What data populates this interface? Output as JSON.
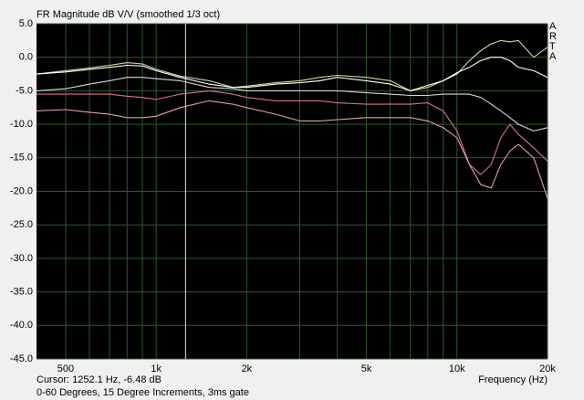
{
  "chart_data": {
    "type": "line",
    "title": "FR Magnitude dB V/V (smoothed 1/3 oct)",
    "x_label": "Frequency (Hz)",
    "brand": "ARTA",
    "cursor": {
      "label": "Cursor: 1252.1 Hz, -6.48 dB",
      "x": 1252.1,
      "color": "#f2f2a8"
    },
    "note": "0-60 Degrees, 15 Degree Increments, 3ms gate",
    "log_x": true,
    "grid": true,
    "grid_color": "#2c5a2c",
    "xlim": [
      400,
      20000
    ],
    "xticks": [
      {
        "value": 500,
        "label": "500"
      },
      {
        "value": 1000,
        "label": "1k"
      },
      {
        "value": 2000,
        "label": "2k"
      },
      {
        "value": 5000,
        "label": "5k"
      },
      {
        "value": 10000,
        "label": "10k"
      },
      {
        "value": 20000,
        "label": "20k"
      }
    ],
    "x_minor_ticks": [
      600,
      700,
      800,
      900,
      3000,
      4000,
      6000,
      7000,
      8000,
      9000
    ],
    "ylim": [
      -45,
      5
    ],
    "yticks": [
      {
        "value": 5,
        "label": "5.0"
      },
      {
        "value": 0,
        "label": "0.0"
      },
      {
        "value": -5,
        "label": "-5.0"
      },
      {
        "value": -10,
        "label": "-10.0"
      },
      {
        "value": -15,
        "label": "-15.0"
      },
      {
        "value": -20,
        "label": "-20.0"
      },
      {
        "value": -25,
        "label": "-25.0"
      },
      {
        "value": -30,
        "label": "-30.0"
      },
      {
        "value": -35,
        "label": "-35.0"
      },
      {
        "value": -40,
        "label": "-40.0"
      },
      {
        "value": -45,
        "label": "-45.0"
      }
    ],
    "x": [
      400,
      500,
      600,
      700,
      800,
      900,
      1000,
      1200,
      1500,
      1800,
      2000,
      2500,
      3000,
      3500,
      4000,
      5000,
      6000,
      7000,
      8000,
      9000,
      10000,
      11000,
      12000,
      13000,
      14000,
      15000,
      16000,
      18000,
      20000
    ],
    "series": [
      {
        "color": "#c4e09a",
        "values": [
          -2.5,
          -2,
          -1.6,
          -1.2,
          -0.8,
          -1,
          -1.8,
          -2.8,
          -3.5,
          -4.5,
          -4.3,
          -3.8,
          -3.5,
          -3,
          -2.7,
          -3,
          -3.5,
          -5,
          -4.5,
          -3.5,
          -2.5,
          -0.5,
          1,
          2,
          2.5,
          2.3,
          2.5,
          0,
          1.5
        ]
      },
      {
        "color": "#ffffff",
        "values": [
          -2.5,
          -2.2,
          -1.8,
          -1.5,
          -1.2,
          -1.3,
          -2,
          -3,
          -4,
          -4.5,
          -4.5,
          -4,
          -3.8,
          -3.5,
          -3,
          -3.5,
          -4,
          -5,
          -4.2,
          -3.5,
          -2.3,
          -1.5,
          -0.5,
          0,
          0,
          -0.5,
          -1.5,
          -2,
          -3
        ]
      },
      {
        "color": "#d8d8d8",
        "values": [
          -5,
          -4.7,
          -4,
          -3.5,
          -3,
          -3,
          -3.2,
          -3.5,
          -4.5,
          -4.7,
          -5,
          -5,
          -5,
          -5,
          -5,
          -5.3,
          -5.5,
          -5.7,
          -5.7,
          -5.5,
          -5.5,
          -5.5,
          -6,
          -7,
          -8,
          -9,
          -10,
          -11,
          -10.5
        ]
      },
      {
        "color": "#e0708e",
        "values": [
          -5.5,
          -5.5,
          -5.5,
          -5.5,
          -5.8,
          -6,
          -6.3,
          -5.5,
          -5,
          -5.5,
          -6,
          -6.5,
          -6.5,
          -6.5,
          -6.8,
          -7,
          -7,
          -7,
          -6.8,
          -8,
          -11,
          -16,
          -17.5,
          -16,
          -12,
          -10,
          -11.5,
          -13.5,
          -15.5
        ]
      },
      {
        "color": "#e8a0a0",
        "values": [
          -8,
          -7.8,
          -8.2,
          -8.5,
          -9,
          -9,
          -8.8,
          -7.5,
          -6.5,
          -7,
          -7.5,
          -8.5,
          -9.5,
          -9.5,
          -9.3,
          -9,
          -9,
          -9,
          -9.5,
          -10.5,
          -12,
          -16,
          -19,
          -19.5,
          -16,
          -14,
          -13,
          -15,
          -21
        ]
      }
    ]
  }
}
